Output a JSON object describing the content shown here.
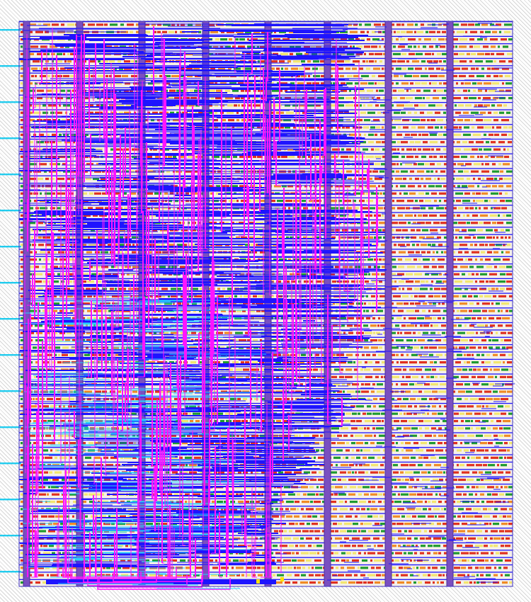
{
  "layout": {
    "background": "#ffffff",
    "hatch_color": "#d6d6d6",
    "core_background": "#f5f0e8",
    "row_count": 77,
    "pin_count": 16,
    "strap_count": 7,
    "colors": {
      "metal1_wire": "#1e14ff",
      "metal2_wire": "#ff14ff",
      "metal3_wire": "#28d2ff",
      "power_strap": "#7a4fc0",
      "strap_edge": "#4a2f9a",
      "cell_red": "#e0301e",
      "cell_green": "#1e9a2e",
      "cell_yellow": "#f2e66e",
      "cell_orange": "#f08a24",
      "pin": "#22ccee",
      "marker": "#ffe000"
    }
  }
}
